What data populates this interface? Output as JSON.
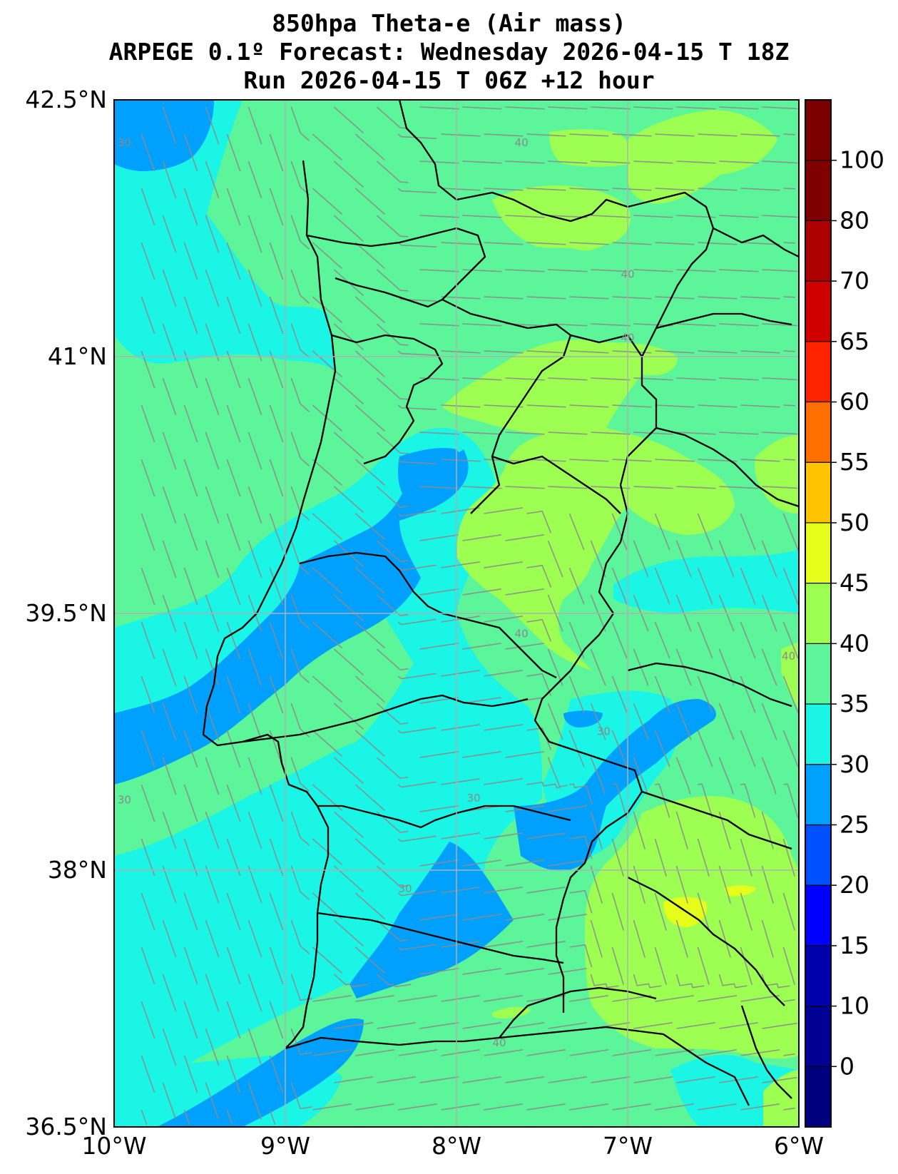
{
  "title": {
    "line1": "850hpa Theta-e (Air mass)",
    "line2": "ARPEGE 0.1º Forecast: Wednesday 2026-04-15 T 18Z",
    "line3": "Run 2026-04-15 T 06Z +12 hour"
  },
  "map": {
    "lon_range": [
      -10,
      -6
    ],
    "lat_range": [
      36.5,
      42.5
    ],
    "x_ticks": [
      {
        "lon": -10,
        "label": "10°W"
      },
      {
        "lon": -9,
        "label": "9°W"
      },
      {
        "lon": -8,
        "label": "8°W"
      },
      {
        "lon": -7,
        "label": "7°W"
      },
      {
        "lon": -6,
        "label": "6°W"
      }
    ],
    "y_ticks": [
      {
        "lat": 42.5,
        "label": "42.5°N"
      },
      {
        "lat": 41,
        "label": "41°N"
      },
      {
        "lat": 39.5,
        "label": "39.5°N"
      },
      {
        "lat": 38,
        "label": "38°N"
      },
      {
        "lat": 36.5,
        "label": "36.5°N"
      }
    ],
    "grid": true,
    "streamlines": true,
    "contour_labels": [
      {
        "text": "40",
        "lon": -7.62,
        "lat": 42.23
      },
      {
        "text": "40",
        "lon": -7.0,
        "lat": 41.46
      },
      {
        "text": "40",
        "lon": -7.0,
        "lat": 41.09
      },
      {
        "text": "40",
        "lon": -7.62,
        "lat": 39.36
      },
      {
        "text": "40",
        "lon": -6.06,
        "lat": 39.23
      },
      {
        "text": "30",
        "lon": -9.94,
        "lat": 42.23
      },
      {
        "text": "30",
        "lon": -9.94,
        "lat": 38.39
      },
      {
        "text": "30",
        "lon": -7.9,
        "lat": 38.4
      },
      {
        "text": "30",
        "lon": -8.3,
        "lat": 37.87
      },
      {
        "text": "30",
        "lon": -7.14,
        "lat": 38.79
      },
      {
        "text": "40",
        "lon": -7.75,
        "lat": 36.97
      }
    ]
  },
  "colorbar": {
    "levels": [
      -5,
      0,
      10,
      15,
      20,
      25,
      30,
      35,
      40,
      45,
      50,
      55,
      60,
      65,
      70,
      80,
      100,
      110
    ],
    "colors": [
      "#00007f",
      "#000094",
      "#0000ad",
      "#0000ff",
      "#0050ff",
      "#00a0ff",
      "#1af5e6",
      "#5cf59a",
      "#9dff52",
      "#e6ff1a",
      "#ffc300",
      "#ff6e00",
      "#ff2200",
      "#d00000",
      "#ad0000",
      "#800000",
      "#7a0000"
    ],
    "tick_labels": [
      {
        "value": 0,
        "label": "0"
      },
      {
        "value": 10,
        "label": "10"
      },
      {
        "value": 15,
        "label": "15"
      },
      {
        "value": 20,
        "label": "20"
      },
      {
        "value": 25,
        "label": "25"
      },
      {
        "value": 30,
        "label": "30"
      },
      {
        "value": 35,
        "label": "35"
      },
      {
        "value": 40,
        "label": "40"
      },
      {
        "value": 45,
        "label": "45"
      },
      {
        "value": 50,
        "label": "50"
      },
      {
        "value": 55,
        "label": "55"
      },
      {
        "value": 60,
        "label": "60"
      },
      {
        "value": 65,
        "label": "65"
      },
      {
        "value": 70,
        "label": "70"
      },
      {
        "value": 80,
        "label": "80"
      },
      {
        "value": 100,
        "label": "100"
      }
    ]
  }
}
